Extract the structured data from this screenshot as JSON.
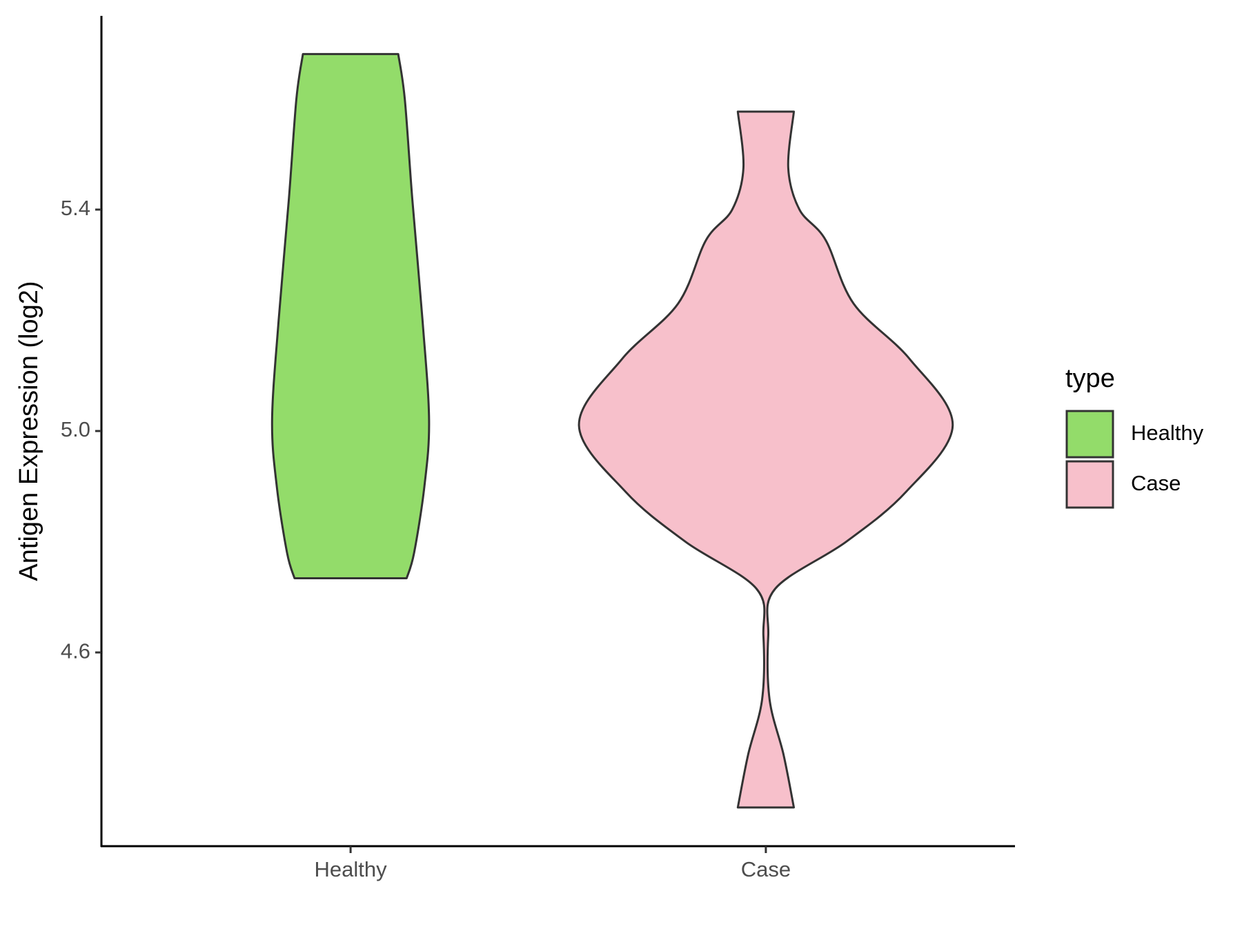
{
  "chart_data": {
    "type": "violin",
    "y_label": "Antigen Expression (log2)",
    "categories": [
      "Healthy",
      "Case"
    ],
    "ylim": [
      4.25,
      5.75
    ],
    "yticks": [
      4.6,
      {
        "value": 5,
        "label": "5.0"
      },
      5.4
    ],
    "legend_title": "type",
    "legend_position": "right",
    "series": [
      {
        "name": "Healthy",
        "color": "#93dc6a",
        "y": [
          5.681,
          5.6,
          5.42,
          5.2,
          5.02,
          4.9,
          4.78,
          4.734
        ],
        "width": [
          0.255,
          0.29,
          0.33,
          0.385,
          0.42,
          0.395,
          0.34,
          0.3
        ]
      },
      {
        "name": "Case",
        "color": "#f7c0cb",
        "y": [
          5.577,
          5.475,
          5.4,
          5.345,
          5.23,
          5.13,
          5.01,
          4.89,
          4.8,
          4.715,
          4.63,
          4.515,
          4.415,
          4.32
        ],
        "width": [
          0.15,
          0.12,
          0.18,
          0.32,
          0.47,
          0.77,
          1,
          0.75,
          0.43,
          0.05,
          0.013,
          0.02,
          0.095,
          0.15
        ]
      }
    ]
  }
}
